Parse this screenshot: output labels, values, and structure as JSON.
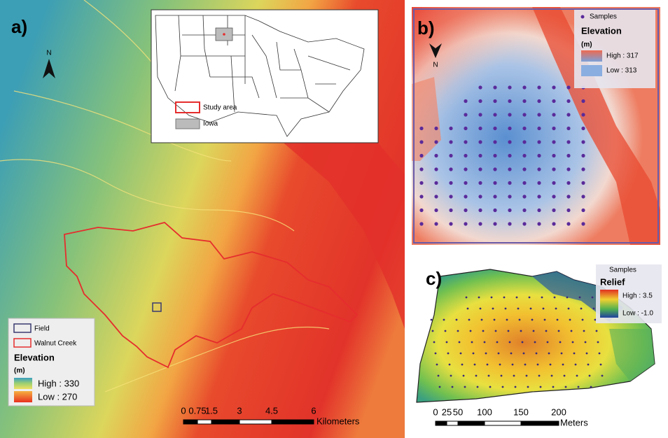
{
  "panel_a": {
    "label": "a)",
    "north": "N",
    "inset_legend": {
      "study_area": "Study area",
      "iowa": "Iowa"
    },
    "legend": {
      "field": "Field",
      "walnut_creek": "Walnut Creek",
      "title": "Elevation",
      "unit": "(m)",
      "high": "High : 330",
      "low": "Low : 270"
    },
    "scale_bar": {
      "ticks": [
        "0",
        "0.75",
        "1.5",
        "3",
        "4.5",
        "6"
      ],
      "unit": "Kilometers"
    }
  },
  "panel_b": {
    "label": "b)",
    "north": "N",
    "legend": {
      "samples": "Samples",
      "title": "Elevation",
      "unit": "(m)",
      "high": "High : 317",
      "low": "Low : 313"
    }
  },
  "panel_c": {
    "label": "c)",
    "legend": {
      "samples": "Samples",
      "title": "Relief",
      "high": "High : 3.5",
      "low": "Low : -1.0"
    },
    "scale_bar": {
      "ticks": [
        "0",
        "25",
        "50",
        "100",
        "150",
        "200"
      ],
      "unit": "Meters"
    }
  }
}
